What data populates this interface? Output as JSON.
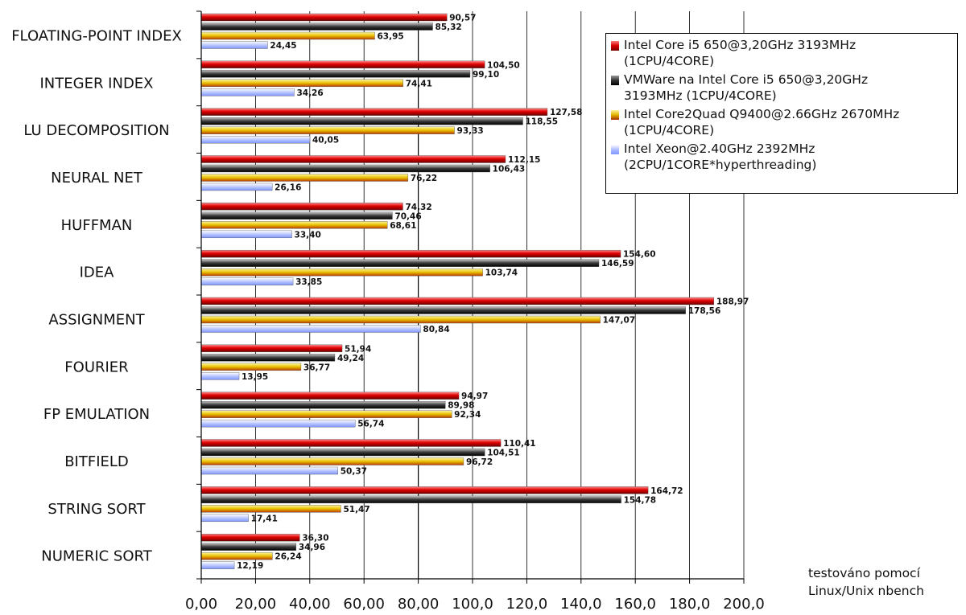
{
  "chart_data": {
    "type": "bar",
    "orientation": "horizontal",
    "categories": [
      "FLOATING-POINT INDEX",
      "INTEGER INDEX",
      "LU DECOMPOSITION",
      "NEURAL NET",
      "HUFFMAN",
      "IDEA",
      "ASSIGNMENT",
      "FOURIER",
      "FP EMULATION",
      "BITFIELD",
      "STRING SORT",
      "NUMERIC SORT"
    ],
    "series": [
      {
        "name": "Intel Core i5 650@3,20GHz 3193MHz (1CPU/4CORE)",
        "color": "#d40000",
        "values": [
          90.57,
          104.5,
          127.58,
          112.15,
          74.32,
          154.6,
          188.97,
          51.94,
          94.97,
          110.41,
          164.72,
          36.3
        ],
        "labels": [
          "90,57",
          "104,50",
          "127,58",
          "112,15",
          "74,32",
          "154,60",
          "188,97",
          "51,94",
          "94,97",
          "110,41",
          "164,72",
          "36,30"
        ]
      },
      {
        "name": "VMWare na Intel Core i5 650@3,20GHz 3193MHz (1CPU/4CORE)",
        "color": "#333333",
        "values": [
          85.32,
          99.1,
          118.55,
          106.43,
          70.46,
          146.59,
          178.56,
          49.24,
          89.98,
          104.51,
          154.78,
          34.96
        ],
        "labels": [
          "85,32",
          "99,10",
          "118,55",
          "106,43",
          "70,46",
          "146,59",
          "178,56",
          "49,24",
          "89,98",
          "104,51",
          "154,78",
          "34,96"
        ]
      },
      {
        "name": "Intel Core2Quad Q9400@2.66GHz 2670MHz (1CPU/4CORE)",
        "color": "#e0b400",
        "values": [
          63.95,
          74.41,
          93.33,
          76.22,
          68.61,
          103.74,
          147.07,
          36.77,
          92.34,
          96.72,
          51.47,
          26.24
        ],
        "labels": [
          "63,95",
          "74,41",
          "93,33",
          "76,22",
          "68,61",
          "103,74",
          "147,07",
          "36,77",
          "92,34",
          "96,72",
          "51,47",
          "26,24"
        ]
      },
      {
        "name": "Intel Xeon@2.40GHz 2392MHz (2CPU/1CORE*hyperthreading)",
        "color": "#a9b8ff",
        "values": [
          24.45,
          34.26,
          40.05,
          26.16,
          33.4,
          33.85,
          80.84,
          13.95,
          56.74,
          50.37,
          17.41,
          12.19
        ],
        "labels": [
          "24,45",
          "34,26",
          "40,05",
          "26,16",
          "33,40",
          "33,85",
          "80,84",
          "13,95",
          "56,74",
          "50,37",
          "17,41",
          "12,19"
        ]
      }
    ],
    "xlim": [
      0,
      200
    ],
    "xticks": [
      0,
      20,
      40,
      60,
      80,
      100,
      120,
      140,
      160,
      180,
      200
    ],
    "xtick_labels": [
      "0,00",
      "20,00",
      "40,00",
      "60,00",
      "80,00",
      "100,0",
      "120,0",
      "140,0",
      "160,0",
      "180,0",
      "200,0"
    ],
    "grid": "vertical",
    "legend_position": "top-right"
  },
  "legend": {
    "lines": [
      [
        "Intel Core i5 650@3,20GHz 3193MHz",
        "(1CPU/4CORE)"
      ],
      [
        "VMWare na Intel Core i5 650@3,20GHz",
        "3193MHz (1CPU/4CORE)"
      ],
      [
        "Intel Core2Quad Q9400@2.66GHz 2670MHz",
        "(1CPU/4CORE)"
      ],
      [
        "Intel Xeon@2.40GHz 2392MHz",
        "(2CPU/1CORE*hyperthreading)"
      ]
    ]
  },
  "note": {
    "line1": "testováno pomocí",
    "line2": "Linux/Unix nbench"
  }
}
